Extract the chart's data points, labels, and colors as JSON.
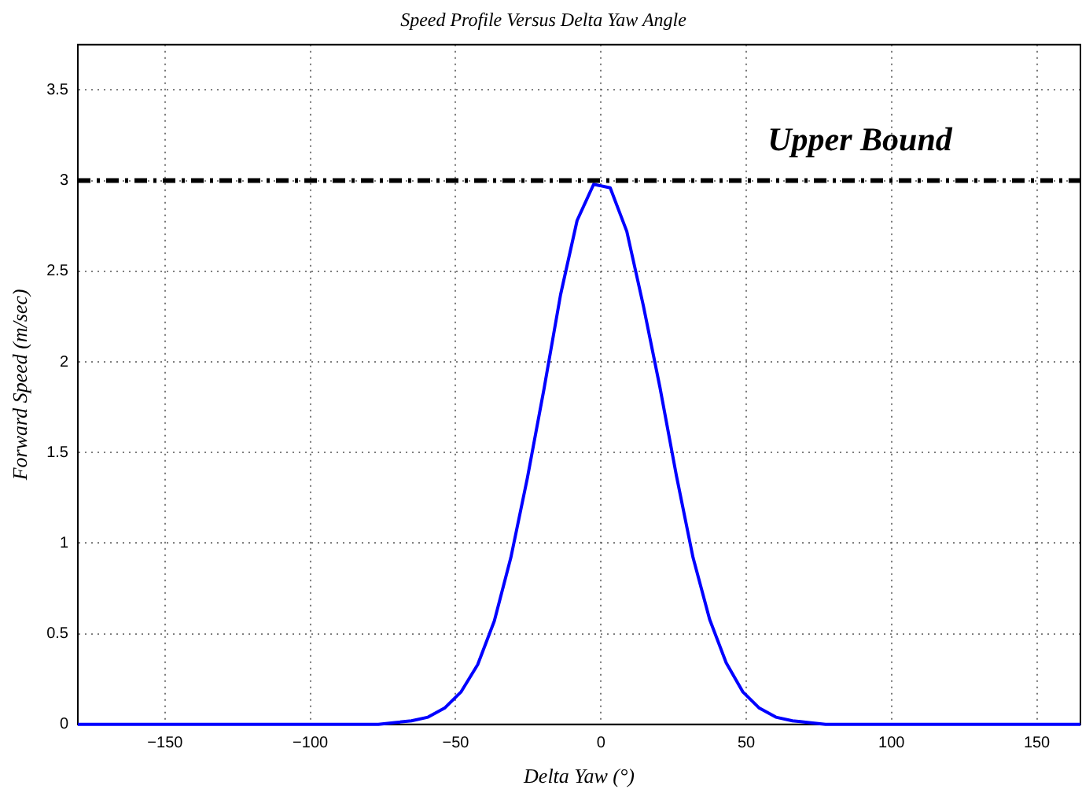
{
  "chart_data": {
    "type": "line",
    "title": "Speed Profile Versus Delta Yaw Angle",
    "xlabel": "Delta Yaw (°)",
    "ylabel": "Forward Speed (m/sec)",
    "series": [
      {
        "color": "#0000ff",
        "x": [
          -180,
          -76.6,
          -70.9,
          -65.2,
          -59.5,
          -53.8,
          -48.1,
          -42.4,
          -36.7,
          -31,
          -25.3,
          -19.6,
          -13.9,
          -8.2,
          -2.5,
          3.2,
          8.9,
          14.6,
          20.3,
          26,
          31.7,
          37.4,
          43.1,
          48.8,
          54.5,
          60.2,
          65.9,
          71.6,
          77.3,
          165
        ],
        "values": [
          0,
          0,
          0.01,
          0.02,
          0.04,
          0.09,
          0.18,
          0.33,
          0.57,
          0.92,
          1.36,
          1.85,
          2.37,
          2.78,
          2.98,
          2.96,
          2.72,
          2.31,
          1.86,
          1.37,
          0.92,
          0.58,
          0.34,
          0.18,
          0.09,
          0.04,
          0.02,
          0.01,
          0,
          0
        ]
      }
    ],
    "ref_lines": [
      {
        "axis": "y",
        "value": 3,
        "label": "Upper Bound",
        "color": "#000000",
        "line_style": "dashed"
      }
    ],
    "xlim": [
      -180,
      165
    ],
    "xticks": [
      {
        "value": -150,
        "label": "−150"
      },
      {
        "value": -100,
        "label": "−100"
      },
      {
        "value": -50,
        "label": "−50"
      },
      0,
      50,
      100,
      150
    ],
    "ylim": [
      0,
      3.75
    ],
    "yticks": [
      0,
      0.5,
      1,
      1.5,
      2,
      2.5,
      3,
      3.5
    ],
    "grid": true,
    "legend": false,
    "marker": "none",
    "line_style": "solid"
  }
}
